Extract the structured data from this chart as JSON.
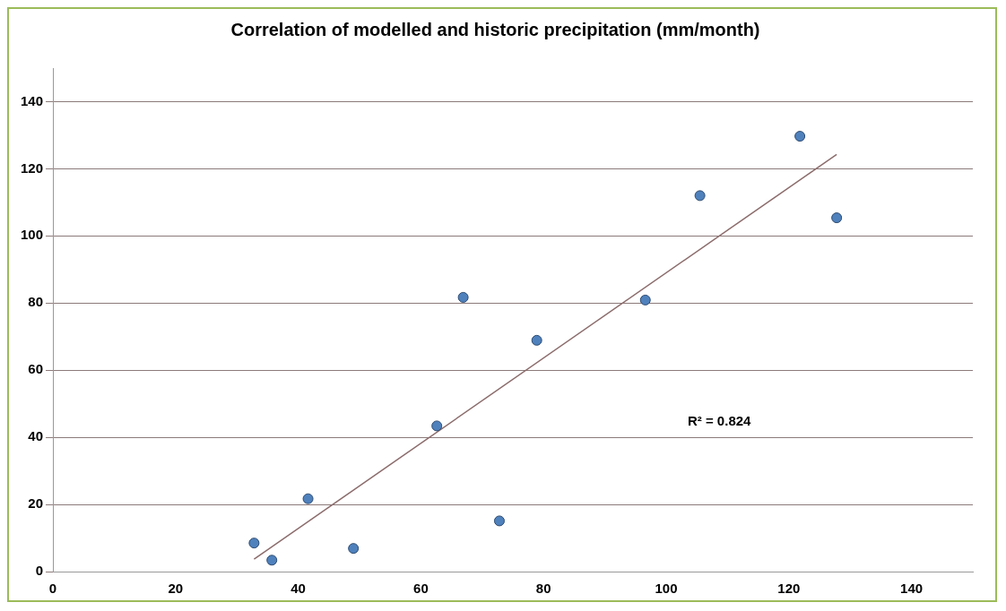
{
  "chart_data": {
    "type": "scatter",
    "title": "Correlation of modelled and historic precipitation (mm/month)",
    "series": [
      {
        "type": "scatter",
        "marker": "circle",
        "color": "#4f81bd",
        "x": [
          32.8,
          35.7,
          41.6,
          49.0,
          62.6,
          66.9,
          72.8,
          78.9,
          96.6,
          105.5,
          121.8,
          127.8
        ],
        "values": [
          8.5,
          3.4,
          21.7,
          6.9,
          43.4,
          81.7,
          15.1,
          68.9,
          80.9,
          112,
          129.7,
          105.4
        ]
      },
      {
        "type": "line",
        "color": "#8b6b6b",
        "x": [
          32.8,
          127.8
        ],
        "values": [
          3.7,
          124.3
        ]
      }
    ],
    "xlim": [
      0,
      150
    ],
    "xticks": [
      0,
      20,
      40,
      60,
      80,
      100,
      120,
      140
    ],
    "ylim": [
      0,
      150
    ],
    "yticks": [
      0,
      20,
      40,
      60,
      80,
      100,
      120,
      140
    ],
    "grid": "y",
    "legend": false,
    "annotations": [
      "R² = 0.824"
    ]
  }
}
